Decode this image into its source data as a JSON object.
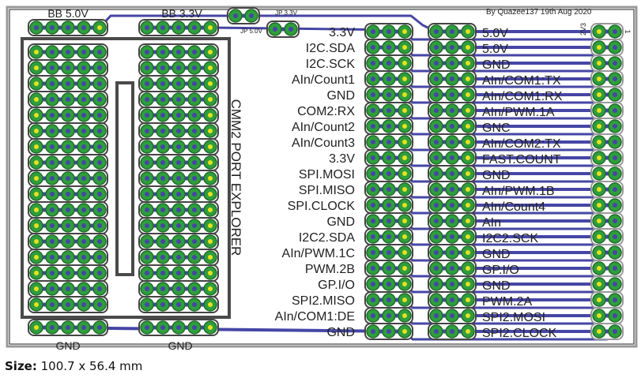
{
  "credit": "By Quazee137 19th Aug 2020",
  "board_title": "CMM2 PORT EXPLORER",
  "headers": {
    "bb5": "BB 5.0V",
    "bb33": "BB 3.3V",
    "jp5": "JP 5.0V",
    "jp33": "JP 3.3V",
    "gnd_left": "GND",
    "gnd_right": "GND",
    "conn_mark_top": "2V3",
    "conn_pin1": "1"
  },
  "left_labels": [
    "3.3V",
    "I2C.SDA",
    "I2C.SCK",
    "AIn/Count1",
    "GND",
    "COM2:RX",
    "AIn/Count2",
    "AIn/Count3",
    "3.3V",
    "SPI.MOSI",
    "SPI.MISO",
    "SPI.CLOCK",
    "GND",
    "I2C2.SDA",
    "AIn/PWM.1C",
    "PWM.2B",
    "GP.I/O",
    "SPI2.MISO",
    "AIn/COM1:DE",
    "GND"
  ],
  "right_labels": [
    "5.0V",
    "5.0V",
    "GND",
    "AIn/COM1:TX",
    "AIn/COM1:RX",
    "AIn/PWM.1A",
    "GNC",
    "AIn/COM2:TX",
    "FAST.COUNT",
    "GND",
    "AIn/PWM.1B",
    "AIn/Count4",
    "AIn",
    "I2C2.SCK",
    "GND",
    "GP.I/O",
    "GND",
    "PWM.2A",
    "SPI2.MOSI",
    "SPI2.CLOCK"
  ],
  "breadboard_rows": 17,
  "size": {
    "label": "Size:",
    "value": "100.7 x 56.4 mm"
  },
  "colors": {
    "trace": "#4646a6",
    "pad": "#2f9e3c",
    "pad_edge": "#1f6b2a",
    "outline": "#444444",
    "pin1": "#e8e020"
  }
}
